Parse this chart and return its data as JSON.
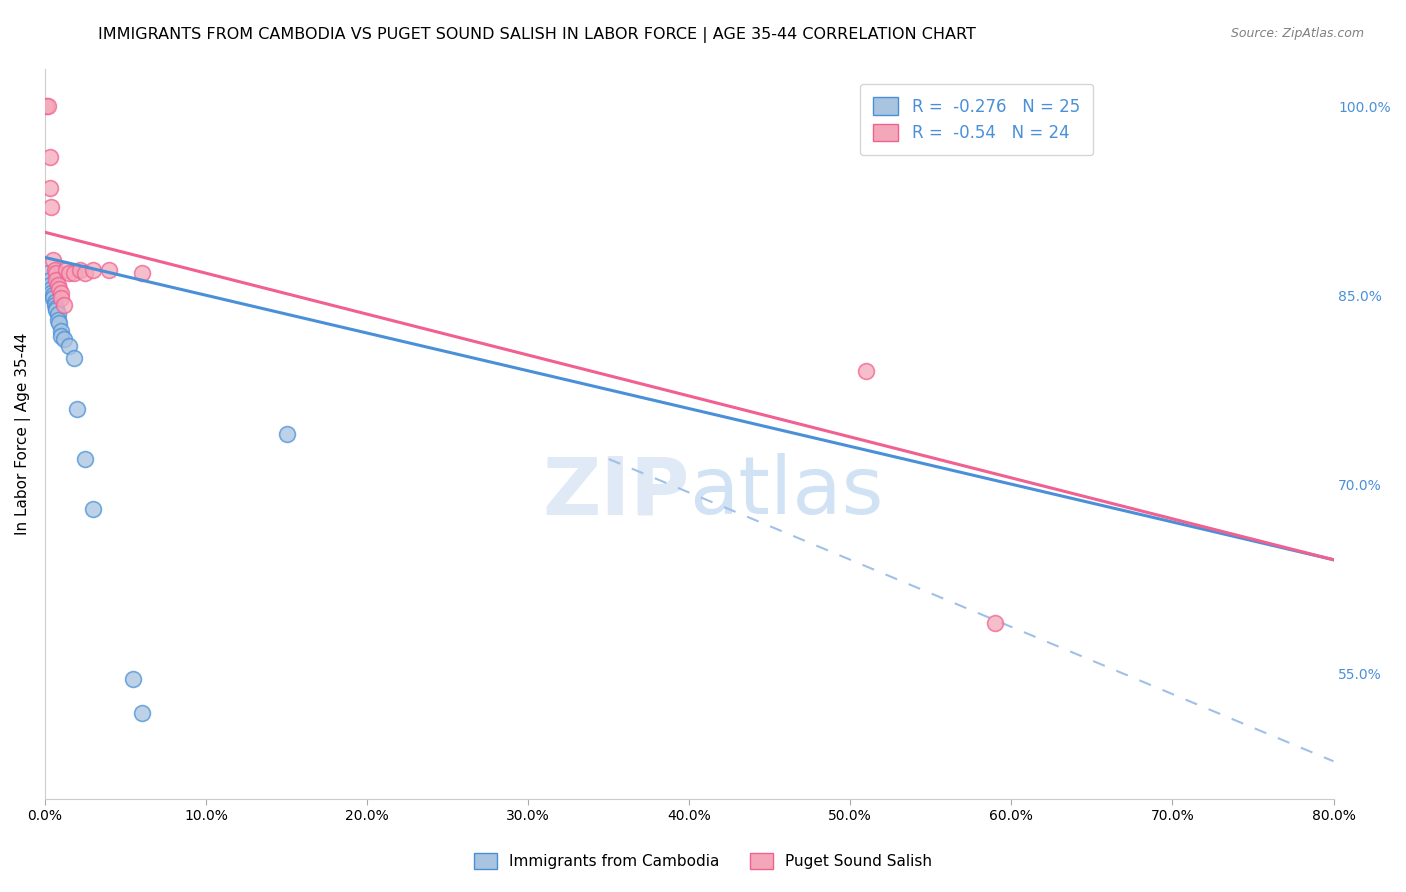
{
  "title": "IMMIGRANTS FROM CAMBODIA VS PUGET SOUND SALISH IN LABOR FORCE | AGE 35-44 CORRELATION CHART",
  "source": "Source: ZipAtlas.com",
  "ylabel": "In Labor Force | Age 35-44",
  "xlim": [
    0.0,
    0.8
  ],
  "ylim": [
    0.45,
    1.03
  ],
  "xticks": [
    0.0,
    0.1,
    0.2,
    0.3,
    0.4,
    0.5,
    0.6,
    0.7,
    0.8
  ],
  "yticks_right": [
    1.0,
    0.85,
    0.7,
    0.55
  ],
  "xtick_labels": [
    "0.0%",
    "10.0%",
    "20.0%",
    "30.0%",
    "40.0%",
    "50.0%",
    "60.0%",
    "70.0%",
    "80.0%"
  ],
  "ytick_labels_right": [
    "100.0%",
    "85.0%",
    "70.0%",
    "55.0%"
  ],
  "blue_label": "Immigrants from Cambodia",
  "pink_label": "Puget Sound Salish",
  "blue_R": -0.276,
  "blue_N": 25,
  "pink_R": -0.54,
  "pink_N": 24,
  "blue_color": "#a8c4e0",
  "pink_color": "#f4a7b9",
  "blue_line_color": "#4a90d9",
  "pink_line_color": "#f06090",
  "blue_scatter": [
    [
      0.002,
      0.868
    ],
    [
      0.003,
      0.862
    ],
    [
      0.003,
      0.858
    ],
    [
      0.004,
      0.855
    ],
    [
      0.004,
      0.852
    ],
    [
      0.005,
      0.85
    ],
    [
      0.005,
      0.848
    ],
    [
      0.006,
      0.845
    ],
    [
      0.006,
      0.842
    ],
    [
      0.007,
      0.84
    ],
    [
      0.007,
      0.838
    ],
    [
      0.008,
      0.835
    ],
    [
      0.008,
      0.83
    ],
    [
      0.009,
      0.828
    ],
    [
      0.01,
      0.822
    ],
    [
      0.01,
      0.818
    ],
    [
      0.012,
      0.815
    ],
    [
      0.015,
      0.81
    ],
    [
      0.018,
      0.8
    ],
    [
      0.02,
      0.76
    ],
    [
      0.025,
      0.72
    ],
    [
      0.15,
      0.74
    ],
    [
      0.03,
      0.68
    ],
    [
      0.055,
      0.545
    ],
    [
      0.06,
      0.518
    ]
  ],
  "pink_scatter": [
    [
      0.001,
      1.0
    ],
    [
      0.002,
      1.0
    ],
    [
      0.003,
      0.96
    ],
    [
      0.003,
      0.935
    ],
    [
      0.004,
      0.92
    ],
    [
      0.005,
      0.878
    ],
    [
      0.006,
      0.87
    ],
    [
      0.007,
      0.868
    ],
    [
      0.007,
      0.862
    ],
    [
      0.008,
      0.858
    ],
    [
      0.009,
      0.855
    ],
    [
      0.01,
      0.852
    ],
    [
      0.01,
      0.848
    ],
    [
      0.012,
      0.842
    ],
    [
      0.013,
      0.87
    ],
    [
      0.015,
      0.868
    ],
    [
      0.018,
      0.868
    ],
    [
      0.022,
      0.87
    ],
    [
      0.025,
      0.868
    ],
    [
      0.03,
      0.87
    ],
    [
      0.04,
      0.87
    ],
    [
      0.06,
      0.868
    ],
    [
      0.51,
      0.79
    ],
    [
      0.59,
      0.59
    ]
  ],
  "blue_line_x": [
    0.0,
    0.8
  ],
  "blue_line_y": [
    0.88,
    0.64
  ],
  "pink_line_x": [
    0.0,
    0.8
  ],
  "pink_line_y": [
    0.9,
    0.64
  ],
  "dash_line_x": [
    0.35,
    0.8
  ],
  "dash_line_y": [
    0.72,
    0.48
  ],
  "watermark_zip": "ZIP",
  "watermark_atlas": "atlas",
  "background_color": "#ffffff",
  "grid_color": "#dddddd",
  "title_fontsize": 11.5,
  "label_fontsize": 11,
  "tick_fontsize": 10,
  "legend_fontsize": 12,
  "source_fontsize": 9
}
